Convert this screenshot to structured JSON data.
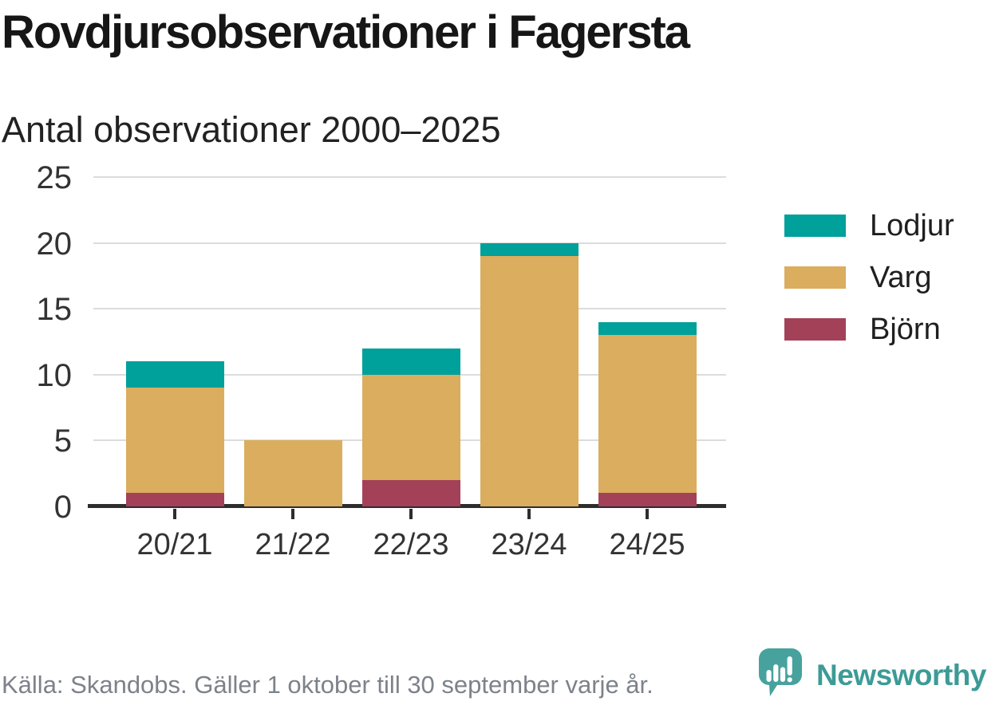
{
  "header": {
    "title": "Rovdjursobservationer i Fagersta",
    "subtitle": "Antal observationer 2000–2025"
  },
  "chart_data": {
    "type": "bar",
    "stacked": true,
    "categories": [
      "20/21",
      "21/22",
      "22/23",
      "23/24",
      "24/25"
    ],
    "series": [
      {
        "name": "Lodjur",
        "color": "#00a09b",
        "values": [
          2,
          0,
          2,
          1,
          1
        ]
      },
      {
        "name": "Varg",
        "color": "#dbad5e",
        "values": [
          8,
          5,
          8,
          19,
          12
        ]
      },
      {
        "name": "Björn",
        "color": "#a34159",
        "values": [
          1,
          0,
          2,
          0,
          1
        ]
      }
    ],
    "title": "Rovdjursobservationer i Fagersta",
    "subtitle": "Antal observationer 2000–2025",
    "xlabel": "",
    "ylabel": "",
    "ylim": [
      0,
      25
    ],
    "yticks": [
      0,
      5,
      10,
      15,
      20,
      25
    ],
    "grid": true,
    "legend_position": "right"
  },
  "footer": {
    "source": "Källa: Skandobs. Gäller 1 oktober till 30 september varje år.",
    "brand": "Newsworthy"
  },
  "colors": {
    "axis": "#2d2d2d",
    "grid": "#dcdcdc",
    "tick_text": "#333333",
    "title_text": "#161616",
    "footer_text": "#7d828a",
    "brand_teal": "#3c9b96",
    "logo_teal": "#47a29d"
  }
}
